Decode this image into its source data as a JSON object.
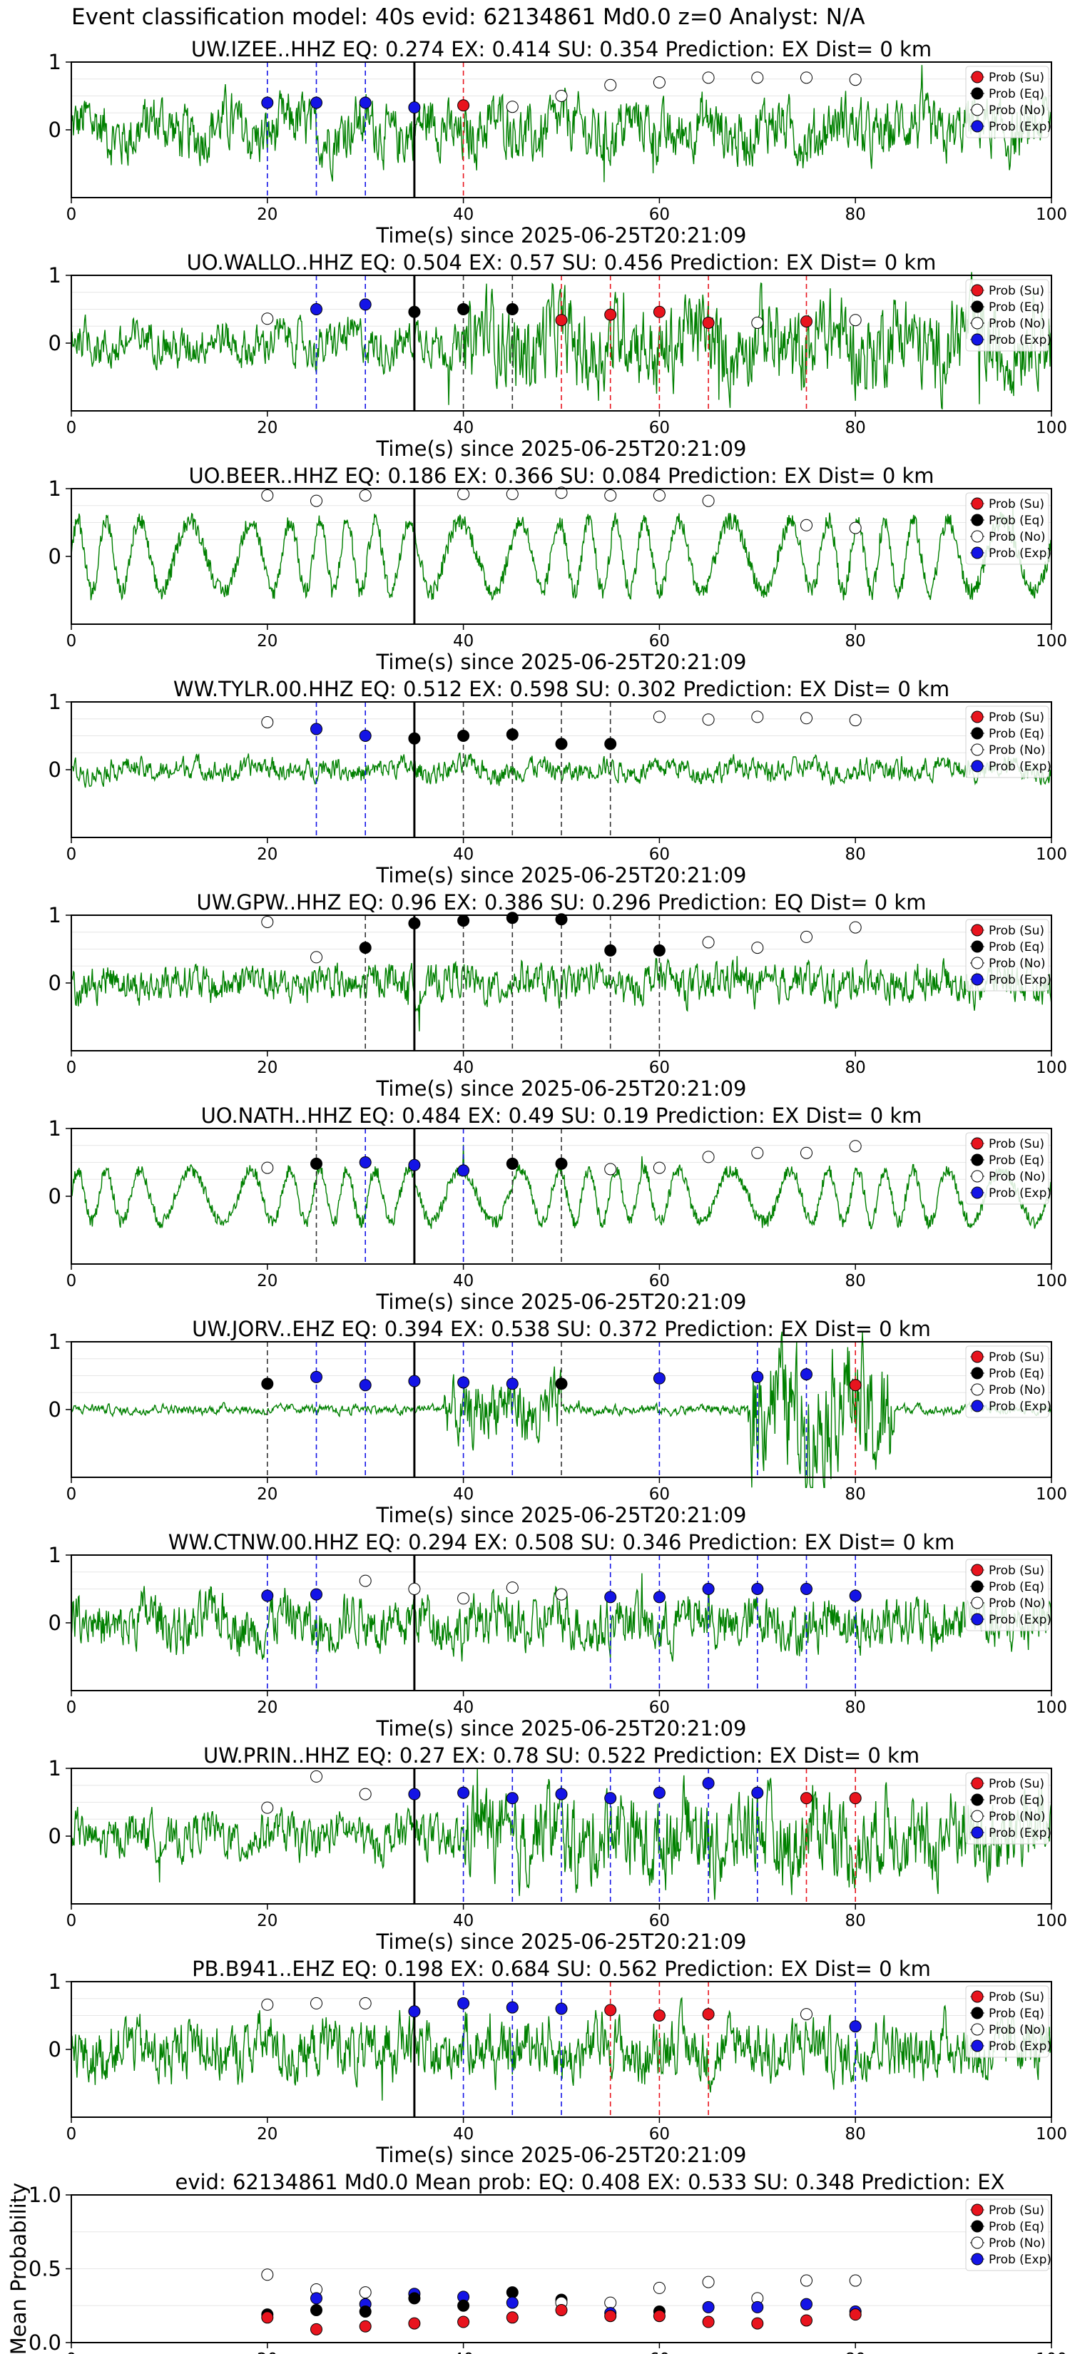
{
  "title": "Event classification model: 40s evid: 62134861 Md0.0 z=0 Analyst: N/A",
  "colors": {
    "trace": "#008000",
    "su": "#e8141e",
    "eq": "#000000",
    "no": "#ffffff",
    "exp": "#1414e6",
    "arrival": "#000000"
  },
  "legend": [
    "Prob (Su)",
    "Prob (Eq)",
    "Prob (No)",
    "Prob (Exp)"
  ],
  "xlabel": "Time(s) since 2025-06-25T20:21:09",
  "chart_data": [
    {
      "type": "scatter",
      "title": "UW.IZEE..HHZ   EQ: 0.274  EX: 0.414  SU: 0.354   Prediction: EX    Dist= 0 km",
      "trace_style": "noisy",
      "amp": 0.55,
      "xlim": [
        0,
        100
      ],
      "ylim": [
        -1,
        1
      ],
      "yticks": [
        "0",
        "1"
      ],
      "xticks": [
        "0",
        "20",
        "40",
        "60",
        "80",
        "100"
      ],
      "grid": true,
      "legend": "top-right",
      "arrival": 35,
      "points": [
        [
          20,
          0.4,
          "exp"
        ],
        [
          25,
          0.4,
          "exp"
        ],
        [
          30,
          0.4,
          "exp"
        ],
        [
          35,
          0.33,
          "exp"
        ],
        [
          40,
          0.36,
          "su"
        ],
        [
          45,
          0.34,
          "no"
        ],
        [
          50,
          0.5,
          "no"
        ],
        [
          55,
          0.66,
          "no"
        ],
        [
          60,
          0.7,
          "no"
        ],
        [
          65,
          0.77,
          "no"
        ],
        [
          70,
          0.77,
          "no"
        ],
        [
          75,
          0.77,
          "no"
        ],
        [
          80,
          0.74,
          "no"
        ]
      ]
    },
    {
      "type": "scatter",
      "title": "UO.WALLO..HHZ   EQ: 0.504  EX: 0.57  SU: 0.456   Prediction: EX    Dist= 0 km",
      "trace_style": "burst",
      "amp": 0.5,
      "xlim": [
        0,
        100
      ],
      "ylim": [
        -1,
        1
      ],
      "yticks": [
        "0",
        "1"
      ],
      "xticks": [
        "0",
        "20",
        "40",
        "60",
        "80",
        "100"
      ],
      "grid": true,
      "legend": "top-right",
      "arrival": 35,
      "points": [
        [
          20,
          0.36,
          "no"
        ],
        [
          25,
          0.5,
          "exp"
        ],
        [
          30,
          0.57,
          "exp"
        ],
        [
          35,
          0.46,
          "eq"
        ],
        [
          40,
          0.5,
          "eq"
        ],
        [
          45,
          0.5,
          "eq"
        ],
        [
          50,
          0.34,
          "su"
        ],
        [
          55,
          0.42,
          "su"
        ],
        [
          60,
          0.46,
          "su"
        ],
        [
          65,
          0.3,
          "su"
        ],
        [
          70,
          0.3,
          "no"
        ],
        [
          75,
          0.32,
          "su"
        ],
        [
          80,
          0.34,
          "no"
        ]
      ]
    },
    {
      "type": "scatter",
      "title": "UO.BEER..HHZ   EQ: 0.186  EX: 0.366  SU: 0.084   Prediction: EX    Dist= 0 km",
      "trace_style": "wavy",
      "amp": 0.75,
      "xlim": [
        0,
        100
      ],
      "ylim": [
        -1,
        1
      ],
      "yticks": [
        "0",
        "1"
      ],
      "xticks": [
        "0",
        "20",
        "40",
        "60",
        "80",
        "100"
      ],
      "grid": true,
      "legend": "top-right",
      "arrival": 35,
      "points": [
        [
          20,
          0.9,
          "no"
        ],
        [
          25,
          0.82,
          "no"
        ],
        [
          30,
          0.9,
          "no"
        ],
        [
          40,
          0.92,
          "no"
        ],
        [
          45,
          0.92,
          "no"
        ],
        [
          50,
          0.94,
          "no"
        ],
        [
          55,
          0.9,
          "no"
        ],
        [
          60,
          0.9,
          "no"
        ],
        [
          65,
          0.82,
          "no"
        ],
        [
          75,
          0.46,
          "no"
        ],
        [
          80,
          0.42,
          "no"
        ]
      ]
    },
    {
      "type": "scatter",
      "title": "WW.TYLR.00.HHZ   EQ: 0.512  EX: 0.598  SU: 0.302   Prediction: EX    Dist= 0 km",
      "trace_style": "quiet",
      "amp": 0.3,
      "xlim": [
        0,
        100
      ],
      "ylim": [
        -1,
        1
      ],
      "yticks": [
        "0",
        "1"
      ],
      "xticks": [
        "0",
        "20",
        "40",
        "60",
        "80",
        "100"
      ],
      "grid": true,
      "legend": "top-right",
      "arrival": 35,
      "points": [
        [
          20,
          0.7,
          "no"
        ],
        [
          25,
          0.6,
          "exp"
        ],
        [
          30,
          0.5,
          "exp"
        ],
        [
          35,
          0.46,
          "eq"
        ],
        [
          40,
          0.5,
          "eq"
        ],
        [
          45,
          0.52,
          "eq"
        ],
        [
          50,
          0.38,
          "eq"
        ],
        [
          55,
          0.38,
          "eq"
        ],
        [
          60,
          0.78,
          "no"
        ],
        [
          65,
          0.74,
          "no"
        ],
        [
          70,
          0.78,
          "no"
        ],
        [
          75,
          0.76,
          "no"
        ],
        [
          80,
          0.73,
          "no"
        ]
      ]
    },
    {
      "type": "scatter",
      "title": "UW.GPW..HHZ   EQ: 0.96  EX: 0.386  SU: 0.296   Prediction: EQ    Dist= 0 km",
      "trace_style": "noisy",
      "amp": 0.35,
      "xlim": [
        0,
        100
      ],
      "ylim": [
        -1,
        1
      ],
      "yticks": [
        "0",
        "1"
      ],
      "xticks": [
        "0",
        "20",
        "40",
        "60",
        "80",
        "100"
      ],
      "grid": true,
      "legend": "top-right",
      "arrival": 35,
      "points": [
        [
          20,
          0.9,
          "no"
        ],
        [
          25,
          0.38,
          "no"
        ],
        [
          30,
          0.52,
          "eq"
        ],
        [
          35,
          0.88,
          "eq"
        ],
        [
          40,
          0.92,
          "eq"
        ],
        [
          45,
          0.96,
          "eq"
        ],
        [
          50,
          0.94,
          "eq"
        ],
        [
          55,
          0.48,
          "eq"
        ],
        [
          60,
          0.48,
          "eq"
        ],
        [
          65,
          0.6,
          "no"
        ],
        [
          70,
          0.52,
          "no"
        ],
        [
          75,
          0.68,
          "no"
        ],
        [
          80,
          0.82,
          "no"
        ]
      ]
    },
    {
      "type": "scatter",
      "title": "UO.NATH..HHZ   EQ: 0.484  EX: 0.49  SU: 0.19   Prediction: EX    Dist= 0 km",
      "trace_style": "wavy",
      "amp": 0.55,
      "xlim": [
        0,
        100
      ],
      "ylim": [
        -1,
        1
      ],
      "yticks": [
        "0",
        "1"
      ],
      "xticks": [
        "0",
        "20",
        "40",
        "60",
        "80",
        "100"
      ],
      "grid": true,
      "legend": "top-right",
      "arrival": 35,
      "points": [
        [
          20,
          0.42,
          "no"
        ],
        [
          25,
          0.48,
          "eq"
        ],
        [
          30,
          0.5,
          "exp"
        ],
        [
          35,
          0.46,
          "exp"
        ],
        [
          40,
          0.38,
          "exp"
        ],
        [
          45,
          0.48,
          "eq"
        ],
        [
          50,
          0.48,
          "eq"
        ],
        [
          55,
          0.4,
          "no"
        ],
        [
          60,
          0.42,
          "no"
        ],
        [
          65,
          0.58,
          "no"
        ],
        [
          70,
          0.64,
          "no"
        ],
        [
          75,
          0.64,
          "no"
        ],
        [
          80,
          0.74,
          "no"
        ]
      ]
    },
    {
      "type": "scatter",
      "title": "UW.JORV..EHZ   EQ: 0.394  EX: 0.538  SU: 0.372   Prediction: EX    Dist= 0 km",
      "trace_style": "twobursts",
      "amp": 0.6,
      "xlim": [
        0,
        100
      ],
      "ylim": [
        -1,
        1
      ],
      "yticks": [
        "0",
        "1"
      ],
      "xticks": [
        "0",
        "20",
        "40",
        "60",
        "80",
        "100"
      ],
      "grid": true,
      "legend": "top-right",
      "arrival": 35,
      "points": [
        [
          20,
          0.38,
          "eq"
        ],
        [
          25,
          0.48,
          "exp"
        ],
        [
          30,
          0.36,
          "exp"
        ],
        [
          35,
          0.42,
          "exp"
        ],
        [
          40,
          0.4,
          "exp"
        ],
        [
          45,
          0.38,
          "exp"
        ],
        [
          50,
          0.38,
          "eq"
        ],
        [
          60,
          0.46,
          "exp"
        ],
        [
          70,
          0.48,
          "exp"
        ],
        [
          75,
          0.52,
          "exp"
        ],
        [
          80,
          0.36,
          "su"
        ]
      ]
    },
    {
      "type": "scatter",
      "title": "WW.CTNW.00.HHZ   EQ: 0.294  EX: 0.508  SU: 0.346   Prediction: EX    Dist= 0 km",
      "trace_style": "noisy",
      "amp": 0.5,
      "xlim": [
        0,
        100
      ],
      "ylim": [
        -1,
        1
      ],
      "yticks": [
        "0",
        "1"
      ],
      "xticks": [
        "0",
        "20",
        "40",
        "60",
        "80",
        "100"
      ],
      "grid": true,
      "legend": "top-right",
      "arrival": 35,
      "points": [
        [
          20,
          0.4,
          "exp"
        ],
        [
          25,
          0.42,
          "exp"
        ],
        [
          30,
          0.62,
          "no"
        ],
        [
          35,
          0.5,
          "no"
        ],
        [
          40,
          0.36,
          "no"
        ],
        [
          45,
          0.52,
          "no"
        ],
        [
          50,
          0.42,
          "no"
        ],
        [
          55,
          0.38,
          "exp"
        ],
        [
          60,
          0.38,
          "exp"
        ],
        [
          65,
          0.5,
          "exp"
        ],
        [
          70,
          0.5,
          "exp"
        ],
        [
          75,
          0.5,
          "exp"
        ],
        [
          80,
          0.4,
          "exp"
        ]
      ]
    },
    {
      "type": "scatter",
      "title": "UW.PRIN..HHZ   EQ: 0.27  EX: 0.78  SU: 0.522   Prediction: EX    Dist= 0 km",
      "trace_style": "burst",
      "amp": 0.5,
      "xlim": [
        0,
        100
      ],
      "ylim": [
        -1,
        1
      ],
      "yticks": [
        "0",
        "1"
      ],
      "xticks": [
        "0",
        "20",
        "40",
        "60",
        "80",
        "100"
      ],
      "grid": true,
      "legend": "top-right",
      "arrival": 35,
      "points": [
        [
          20,
          0.42,
          "no"
        ],
        [
          25,
          0.88,
          "no"
        ],
        [
          30,
          0.62,
          "no"
        ],
        [
          35,
          0.62,
          "exp"
        ],
        [
          40,
          0.64,
          "exp"
        ],
        [
          45,
          0.56,
          "exp"
        ],
        [
          50,
          0.62,
          "exp"
        ],
        [
          55,
          0.56,
          "exp"
        ],
        [
          60,
          0.64,
          "exp"
        ],
        [
          65,
          0.78,
          "exp"
        ],
        [
          70,
          0.64,
          "exp"
        ],
        [
          75,
          0.56,
          "su"
        ],
        [
          80,
          0.56,
          "su"
        ]
      ]
    },
    {
      "type": "scatter",
      "title": "PB.B941..EHZ   EQ: 0.198  EX: 0.684  SU: 0.562   Prediction: EX    Dist= 0 km",
      "trace_style": "noisy",
      "amp": 0.55,
      "xlim": [
        0,
        100
      ],
      "ylim": [
        -1,
        1
      ],
      "yticks": [
        "0",
        "1"
      ],
      "xticks": [
        "0",
        "20",
        "40",
        "60",
        "80",
        "100"
      ],
      "grid": true,
      "legend": "top-right",
      "arrival": 35,
      "points": [
        [
          20,
          0.66,
          "no"
        ],
        [
          25,
          0.68,
          "no"
        ],
        [
          30,
          0.68,
          "no"
        ],
        [
          35,
          0.56,
          "exp"
        ],
        [
          40,
          0.68,
          "exp"
        ],
        [
          45,
          0.62,
          "exp"
        ],
        [
          50,
          0.6,
          "exp"
        ],
        [
          55,
          0.58,
          "su"
        ],
        [
          60,
          0.5,
          "su"
        ],
        [
          65,
          0.52,
          "su"
        ],
        [
          75,
          0.52,
          "no"
        ],
        [
          80,
          0.34,
          "exp"
        ]
      ]
    },
    {
      "type": "scatter",
      "title": "evid: 62134861  Md0.0   Mean prob:   EQ: 0.408  EX: 0.533  SU: 0.348   Prediction: EX",
      "ylabel": "Mean Probability",
      "xlim": [
        0,
        100
      ],
      "ylim": [
        0,
        1
      ],
      "yticks": [
        "0.0",
        "0.5",
        "1.0"
      ],
      "xticks": [
        "0",
        "20",
        "40",
        "60",
        "80",
        "100"
      ],
      "grid": true,
      "legend": "top-right",
      "points": [
        [
          20,
          0.46,
          "no"
        ],
        [
          20,
          0.19,
          "eq"
        ],
        [
          20,
          0.17,
          "su"
        ],
        [
          25,
          0.36,
          "no"
        ],
        [
          25,
          0.3,
          "exp"
        ],
        [
          25,
          0.22,
          "eq"
        ],
        [
          25,
          0.09,
          "su"
        ],
        [
          30,
          0.34,
          "no"
        ],
        [
          30,
          0.26,
          "exp"
        ],
        [
          30,
          0.21,
          "eq"
        ],
        [
          30,
          0.11,
          "su"
        ],
        [
          35,
          0.33,
          "exp"
        ],
        [
          35,
          0.3,
          "eq"
        ],
        [
          35,
          0.13,
          "su"
        ],
        [
          40,
          0.31,
          "exp"
        ],
        [
          40,
          0.25,
          "eq"
        ],
        [
          40,
          0.14,
          "su"
        ],
        [
          45,
          0.34,
          "eq"
        ],
        [
          45,
          0.27,
          "exp"
        ],
        [
          45,
          0.17,
          "su"
        ],
        [
          50,
          0.29,
          "eq"
        ],
        [
          50,
          0.27,
          "no"
        ],
        [
          50,
          0.22,
          "su"
        ],
        [
          55,
          0.27,
          "no"
        ],
        [
          55,
          0.2,
          "exp"
        ],
        [
          55,
          0.18,
          "su"
        ],
        [
          60,
          0.37,
          "no"
        ],
        [
          60,
          0.21,
          "eq"
        ],
        [
          60,
          0.18,
          "su"
        ],
        [
          65,
          0.41,
          "no"
        ],
        [
          65,
          0.24,
          "exp"
        ],
        [
          65,
          0.14,
          "su"
        ],
        [
          70,
          0.3,
          "no"
        ],
        [
          70,
          0.24,
          "exp"
        ],
        [
          70,
          0.13,
          "su"
        ],
        [
          75,
          0.42,
          "no"
        ],
        [
          75,
          0.26,
          "exp"
        ],
        [
          75,
          0.15,
          "su"
        ],
        [
          80,
          0.42,
          "no"
        ],
        [
          80,
          0.21,
          "exp"
        ],
        [
          80,
          0.19,
          "su"
        ]
      ]
    }
  ]
}
